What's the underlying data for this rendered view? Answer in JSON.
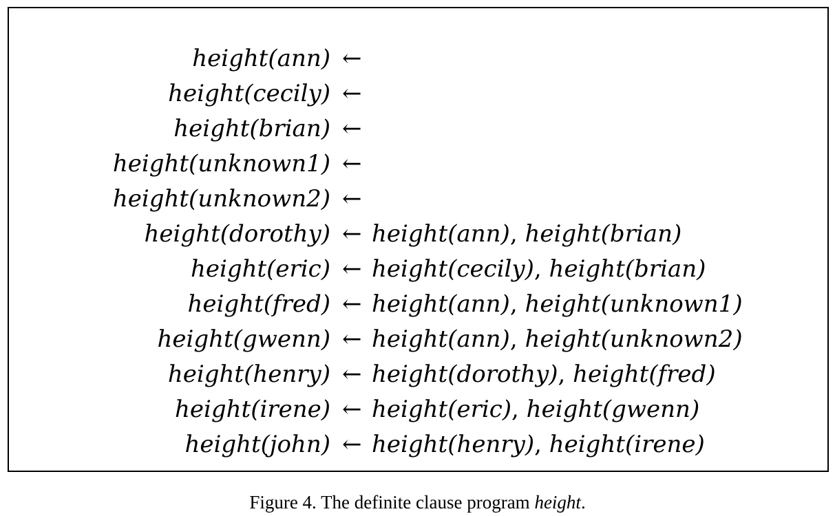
{
  "arrow": "←",
  "comma": ", ",
  "clauses": [
    {
      "head": "height(ann)",
      "body": []
    },
    {
      "head": "height(cecily)",
      "body": []
    },
    {
      "head": "height(brian)",
      "body": []
    },
    {
      "head": "height(unknown1)",
      "body": []
    },
    {
      "head": "height(unknown2)",
      "body": []
    },
    {
      "head": "height(dorothy)",
      "body": [
        "height(ann)",
        "height(brian)"
      ]
    },
    {
      "head": "height(eric)",
      "body": [
        "height(cecily)",
        "height(brian)"
      ]
    },
    {
      "head": "height(fred)",
      "body": [
        "height(ann)",
        "height(unknown1)"
      ]
    },
    {
      "head": "height(gwenn)",
      "body": [
        "height(ann)",
        "height(unknown2)"
      ]
    },
    {
      "head": "height(henry)",
      "body": [
        "height(dorothy)",
        "height(fred)"
      ]
    },
    {
      "head": "height(irene)",
      "body": [
        "height(eric)",
        "height(gwenn)"
      ]
    },
    {
      "head": "height(john)",
      "body": [
        "height(henry)",
        "height(irene)"
      ]
    }
  ],
  "caption": {
    "prefix": "Figure 4. The definite clause program ",
    "name": "height",
    "suffix": "."
  }
}
